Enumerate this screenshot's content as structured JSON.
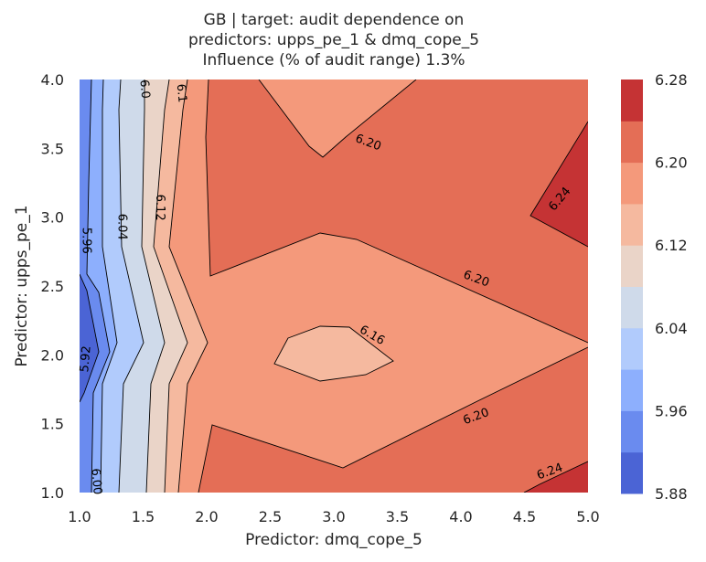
{
  "chart_data": {
    "type": "contourf",
    "title_lines": [
      "GB | target: audit dependence on",
      "predictors: upps_pe_1 & dmq_cope_5",
      "Influence (% of audit range) 1.3%"
    ],
    "xlabel": "Predictor: dmq_cope_5",
    "ylabel": "Predictor: upps_pe_1",
    "xlim": [
      1.0,
      5.0
    ],
    "ylim": [
      1.0,
      4.0
    ],
    "x_ticks": [
      "1.0",
      "1.5",
      "2.0",
      "2.5",
      "3.0",
      "3.5",
      "4.0",
      "4.5",
      "5.0"
    ],
    "y_ticks": [
      "1.0",
      "1.5",
      "2.0",
      "2.5",
      "3.0",
      "3.5",
      "4.0"
    ],
    "colorbar": {
      "levels": [
        5.88,
        5.92,
        5.96,
        6.0,
        6.04,
        6.08,
        6.12,
        6.16,
        6.2,
        6.24,
        6.28
      ],
      "tick_labels": [
        "6.28",
        "6.20",
        "6.12",
        "6.04",
        "5.96",
        "5.88"
      ],
      "band_colors": [
        "#4b64d5",
        "#6a8bef",
        "#8daffd",
        "#b1cbfc",
        "#cfdaea",
        "#ead4c8",
        "#f5b99f",
        "#f4997b",
        "#e46e56",
        "#c53334"
      ]
    },
    "contour_labels": [
      {
        "text": "5.92",
        "x": 1.05,
        "y": 1.97,
        "angle": -85
      },
      {
        "text": "5.96",
        "x": 1.05,
        "y": 2.83,
        "angle": 90
      },
      {
        "text": "6.04",
        "x": 1.33,
        "y": 2.93,
        "angle": 90
      },
      {
        "text": "6.12",
        "x": 1.63,
        "y": 3.07,
        "angle": 90
      },
      {
        "text": "6.20",
        "x": 3.27,
        "y": 3.54,
        "angle": 20
      },
      {
        "text": "6.20",
        "x": 4.12,
        "y": 2.55,
        "angle": 20
      },
      {
        "text": "6.16",
        "x": 3.3,
        "y": 2.14,
        "angle": 30
      },
      {
        "text": "6.20",
        "x": 4.12,
        "y": 1.55,
        "angle": -20
      },
      {
        "text": "6.24",
        "x": 4.78,
        "y": 3.13,
        "angle": -50
      },
      {
        "text": "6.24",
        "x": 4.7,
        "y": 1.15,
        "angle": -20
      },
      {
        "text": "6.00",
        "x": 1.13,
        "y": 1.08,
        "angle": 85
      },
      {
        "text": "6.0",
        "x": 1.51,
        "y": 3.93,
        "angle": 85
      },
      {
        "text": "6.1",
        "x": 1.8,
        "y": 3.9,
        "angle": 85
      }
    ]
  }
}
